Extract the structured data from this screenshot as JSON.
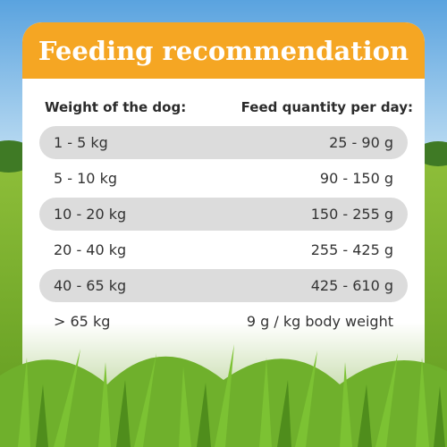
{
  "header": {
    "title": "Feeding recommendation"
  },
  "table": {
    "columns": [
      "Weight of the dog:",
      "Feed quantity per day:"
    ],
    "rows": [
      [
        "1 - 5 kg",
        "25 - 90 g"
      ],
      [
        "5 - 10 kg",
        "90 - 150 g"
      ],
      [
        "10 - 20 kg",
        "150 - 255 g"
      ],
      [
        "20 - 40 kg",
        "255 - 425 g"
      ],
      [
        "40 - 65 kg",
        "425 - 610 g"
      ],
      [
        "> 65 kg",
        "9 g / kg body weight"
      ]
    ]
  }
}
